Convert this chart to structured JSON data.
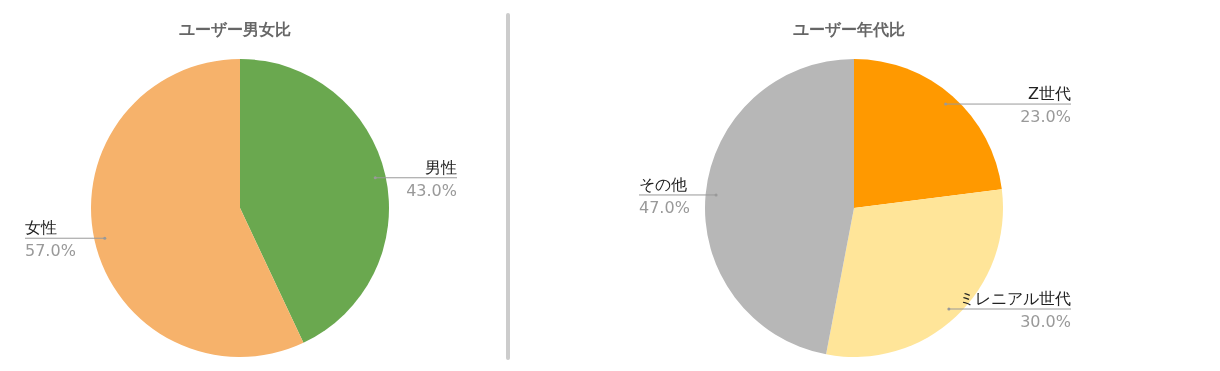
{
  "chart_data": [
    {
      "type": "pie",
      "title": "ユーザー男女比",
      "categories": [
        "男性",
        "女性"
      ],
      "values": [
        43.0,
        57.0
      ],
      "value_labels": [
        "43.0%",
        "57.0%"
      ],
      "colors": [
        "#6aa84f",
        "#f6b26b"
      ],
      "legend": false
    },
    {
      "type": "pie",
      "title": "ユーザー年代比",
      "categories": [
        "Z世代",
        "ミレニアル世代",
        "その他"
      ],
      "values": [
        23.0,
        30.0,
        47.0
      ],
      "value_labels": [
        "23.0%",
        "30.0%",
        "47.0%"
      ],
      "colors": [
        "#ff9900",
        "#ffe599",
        "#b7b7b7"
      ],
      "legend": false
    }
  ]
}
